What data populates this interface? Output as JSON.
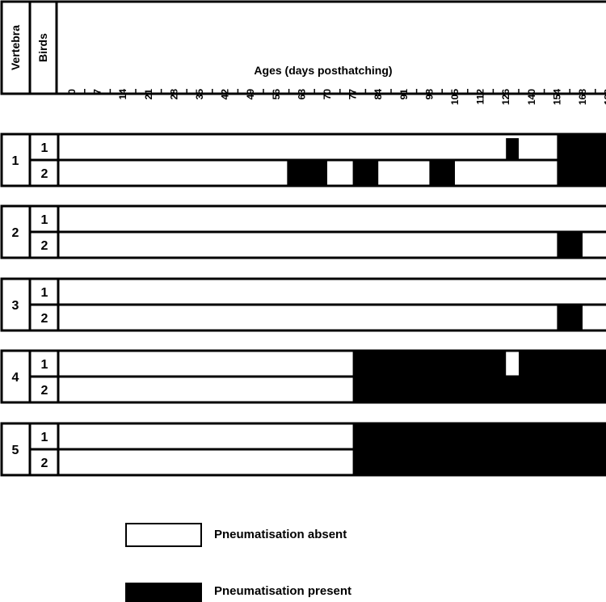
{
  "chart_data": {
    "type": "gantt",
    "header": {
      "vertebra_label": "Vertebra",
      "birds_label": "Birds",
      "title": "Ages (days posthatching)"
    },
    "ages": [
      "0",
      "7",
      "14",
      "21",
      "28",
      "35",
      "42",
      "49",
      "56",
      "63",
      "70",
      "77",
      "84",
      "91",
      "98",
      "105",
      "112",
      "126",
      "140",
      "154",
      "168",
      "182"
    ],
    "vertebrae": [
      {
        "label": "1",
        "birds": [
          {
            "label": "1",
            "present": [
              [
                126,
                133
              ],
              [
                154,
                182
              ]
            ]
          },
          {
            "label": "2",
            "present": [
              [
                59,
                70
              ],
              [
                77,
                84
              ],
              [
                98,
                105
              ],
              [
                154,
                189
              ]
            ]
          }
        ]
      },
      {
        "label": "2",
        "birds": [
          {
            "label": "1",
            "present": []
          },
          {
            "label": "2",
            "present": [
              [
                154,
                168
              ]
            ]
          }
        ]
      },
      {
        "label": "3",
        "birds": [
          {
            "label": "1",
            "present": []
          },
          {
            "label": "2",
            "present": [
              [
                154,
                168
              ]
            ]
          }
        ]
      },
      {
        "label": "4",
        "birds": [
          {
            "label": "1",
            "present": [
              [
                77,
                126
              ],
              [
                133,
                189
              ]
            ]
          },
          {
            "label": "2",
            "present": [
              [
                77,
                189
              ]
            ]
          }
        ]
      },
      {
        "label": "5",
        "birds": [
          {
            "label": "1",
            "present": [
              [
                77,
                189
              ]
            ]
          },
          {
            "label": "2",
            "present": [
              [
                77,
                189
              ]
            ]
          }
        ]
      }
    ],
    "legend": {
      "absent": "Pneumatisation absent",
      "present": "Pneumatisation present"
    },
    "colors": {
      "present": "#000000",
      "absent": "#ffffff"
    }
  }
}
